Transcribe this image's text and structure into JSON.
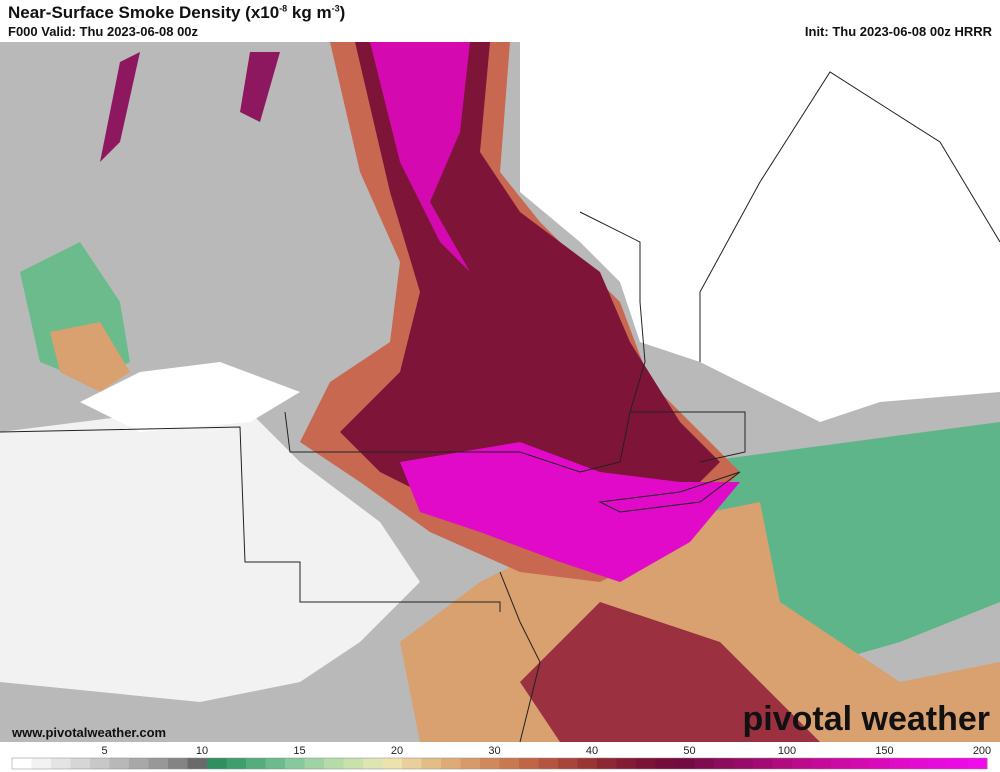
{
  "header": {
    "title_parts": [
      "Near-Surface Smoke Density (x10",
      "-8",
      " kg m",
      "-3",
      ")"
    ],
    "valid": "F000 Valid: Thu 2023-06-08 00z",
    "init": "Init: Thu 2023-06-08 00z HRRR"
  },
  "map": {
    "website": "www.pivotalweather.com",
    "logo": "pivotal weather"
  },
  "colorbar": {
    "labels": [
      5,
      10,
      15,
      20,
      30,
      40,
      50,
      100,
      150,
      200
    ],
    "colors": [
      "#ffffff",
      "#f2f2f2",
      "#e4e4e4",
      "#d6d6d6",
      "#c8c8c8",
      "#b8b8b8",
      "#a8a8a8",
      "#989898",
      "#848484",
      "#6a6a6a",
      "#2f8f5f",
      "#3f9f6c",
      "#55ad7c",
      "#6cbb8c",
      "#86c99c",
      "#9fd3a3",
      "#b4dba8",
      "#c9e2ad",
      "#dde6b2",
      "#ece2ae",
      "#e8cf9c",
      "#e3bd88",
      "#deab77",
      "#d89a68",
      "#d1895b",
      "#c9784f",
      "#c06646",
      "#b5553f",
      "#a8443a",
      "#9a3536",
      "#8e2634",
      "#851a34",
      "#7c1236",
      "#760c3a",
      "#730a42",
      "#800b50",
      "#8c0b5c",
      "#980a68",
      "#a40a74",
      "#b00a80",
      "#bb0a8c",
      "#c40a98",
      "#cc0aa4",
      "#d40ab0",
      "#da0abc",
      "#e00ac8",
      "#e40ad2",
      "#e80adc",
      "#ec0ae4",
      "#f00aec"
    ]
  }
}
